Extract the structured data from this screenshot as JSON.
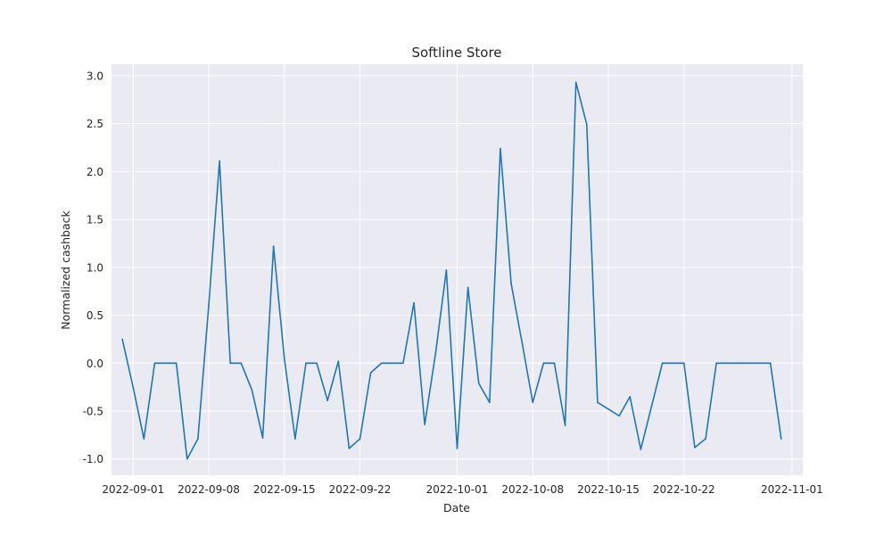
{
  "chart_data": {
    "type": "line",
    "title": "Softline Store",
    "xlabel": "Date",
    "ylabel": "Normalized cashback",
    "grid": true,
    "xlim": [
      "2022-08-30",
      "2022-11-02"
    ],
    "ylim": [
      -1.17,
      3.12
    ],
    "x_ticks": [
      "2022-09-01",
      "2022-09-08",
      "2022-09-15",
      "2022-09-22",
      "2022-10-01",
      "2022-10-08",
      "2022-10-15",
      "2022-10-22",
      "2022-11-01"
    ],
    "y_ticks": [
      "-1.0",
      "-0.5",
      "0.0",
      "0.5",
      "1.0",
      "1.5",
      "2.0",
      "2.5",
      "3.0"
    ],
    "colors": {
      "line": "#1f77b4",
      "plot_bg": "#eaeaf2",
      "grid": "#ffffff"
    },
    "series": [
      {
        "x": [
          "2022-08-31",
          "2022-09-01",
          "2022-09-02",
          "2022-09-03",
          "2022-09-04",
          "2022-09-05",
          "2022-09-06",
          "2022-09-07",
          "2022-09-08",
          "2022-09-09",
          "2022-09-10",
          "2022-09-11",
          "2022-09-12",
          "2022-09-13",
          "2022-09-14",
          "2022-09-15",
          "2022-09-16",
          "2022-09-17",
          "2022-09-18",
          "2022-09-19",
          "2022-09-20",
          "2022-09-21",
          "2022-09-22",
          "2022-09-23",
          "2022-09-24",
          "2022-09-25",
          "2022-09-26",
          "2022-09-27",
          "2022-09-28",
          "2022-09-29",
          "2022-09-30",
          "2022-10-01",
          "2022-10-02",
          "2022-10-03",
          "2022-10-04",
          "2022-10-05",
          "2022-10-06",
          "2022-10-07",
          "2022-10-08",
          "2022-10-09",
          "2022-10-10",
          "2022-10-11",
          "2022-10-12",
          "2022-10-13",
          "2022-10-14",
          "2022-10-15",
          "2022-10-16",
          "2022-10-17",
          "2022-10-18",
          "2022-10-19",
          "2022-10-20",
          "2022-10-21",
          "2022-10-22",
          "2022-10-23",
          "2022-10-24",
          "2022-10-25",
          "2022-10-26",
          "2022-10-27",
          "2022-10-28",
          "2022-10-29",
          "2022-10-30",
          "2022-10-31"
        ],
        "values": [
          0.25,
          -0.25,
          -0.79,
          0.0,
          0.0,
          0.0,
          -1.0,
          -0.79,
          0.6,
          2.11,
          0.0,
          0.0,
          -0.28,
          -0.78,
          1.22,
          0.05,
          -0.79,
          0.0,
          0.0,
          -0.39,
          0.02,
          -0.89,
          -0.79,
          -0.1,
          0.0,
          0.0,
          0.0,
          0.63,
          -0.64,
          0.1,
          0.97,
          -0.89,
          0.79,
          -0.21,
          -0.41,
          2.24,
          0.83,
          0.22,
          -0.41,
          0.0,
          0.0,
          -0.65,
          2.93,
          2.49,
          -0.41,
          -0.48,
          -0.55,
          -0.35,
          -0.9,
          -0.45,
          0.0,
          0.0,
          0.0,
          -0.88,
          -0.79,
          0.0,
          0.0,
          0.0,
          0.0,
          0.0,
          0.0,
          -0.79
        ]
      }
    ]
  }
}
